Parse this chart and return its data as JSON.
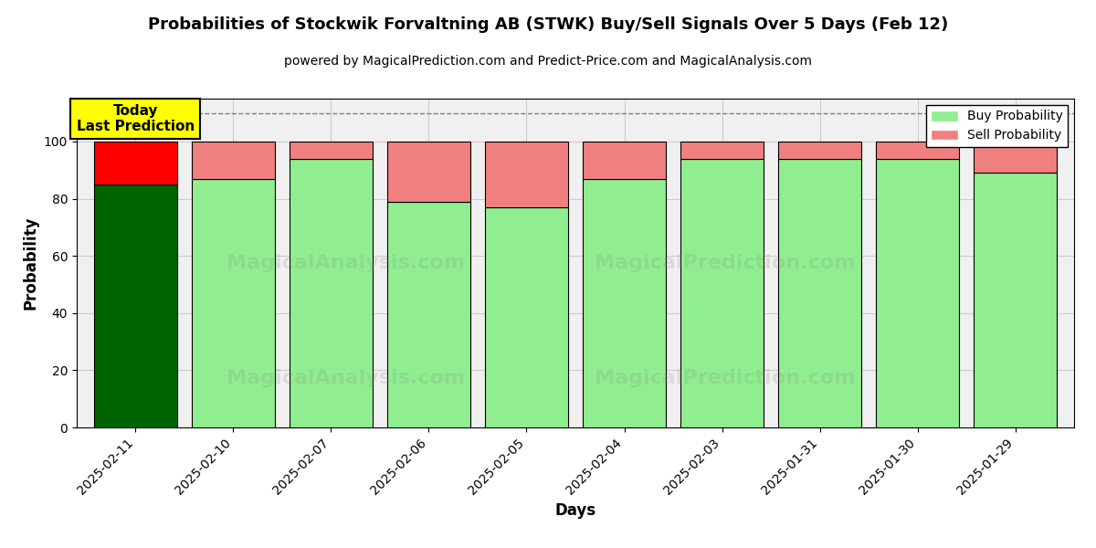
{
  "title": "Probabilities of Stockwik Forvaltning AB (STWK) Buy/Sell Signals Over 5 Days (Feb 12)",
  "subtitle": "powered by MagicalPrediction.com and Predict-Price.com and MagicalAnalysis.com",
  "xlabel": "Days",
  "ylabel": "Probability",
  "dates": [
    "2025-02-11",
    "2025-02-10",
    "2025-02-07",
    "2025-02-06",
    "2025-02-05",
    "2025-02-04",
    "2025-02-03",
    "2025-01-31",
    "2025-01-30",
    "2025-01-29"
  ],
  "buy_prob": [
    85,
    87,
    94,
    79,
    77,
    87,
    94,
    94,
    94,
    89
  ],
  "sell_prob": [
    15,
    13,
    6,
    21,
    23,
    13,
    6,
    6,
    6,
    11
  ],
  "today_buy_color": "#006400",
  "today_sell_color": "#ff0000",
  "buy_color": "#90EE90",
  "sell_color": "#F08080",
  "today_label_bg": "#ffff00",
  "today_label_text": "Today\nLast Prediction",
  "dashed_line_y": 110,
  "ylim": [
    0,
    115
  ],
  "yticks": [
    0,
    20,
    40,
    60,
    80,
    100
  ],
  "grid_color": "#cccccc",
  "background_color": "#f0f0f0",
  "bar_width": 0.85,
  "legend_buy": "Buy Probability",
  "legend_sell": "Sell Probability"
}
